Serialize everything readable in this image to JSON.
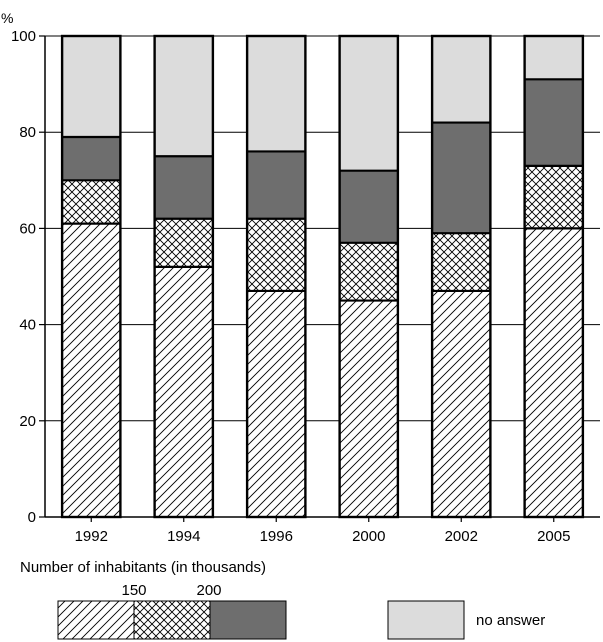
{
  "chart_data": {
    "type": "bar",
    "stacked": true,
    "y_unit": "%",
    "ylim": [
      0,
      100
    ],
    "yticks": [
      0,
      20,
      40,
      60,
      80,
      100
    ],
    "grid": true,
    "categories": [
      "1992",
      "1994",
      "1996",
      "2000",
      "2002",
      "2005"
    ],
    "legend_title": "Number of inhabitants (in thousands)",
    "series": [
      {
        "legend_label": "150",
        "fill": "diagonal-hatch",
        "values": [
          61,
          52,
          47,
          45,
          47,
          60
        ]
      },
      {
        "legend_label": "200",
        "fill": "crosshatch",
        "values": [
          9,
          10,
          15,
          12,
          12,
          13
        ]
      },
      {
        "legend_label": "",
        "fill": "dark-gray",
        "color": "#6e6e6e",
        "values": [
          9,
          13,
          14,
          15,
          23,
          18
        ]
      },
      {
        "name": "no answer",
        "fill": "light-gray",
        "color": "#dcdcdc",
        "values": [
          21,
          25,
          24,
          28,
          18,
          9
        ]
      }
    ]
  }
}
